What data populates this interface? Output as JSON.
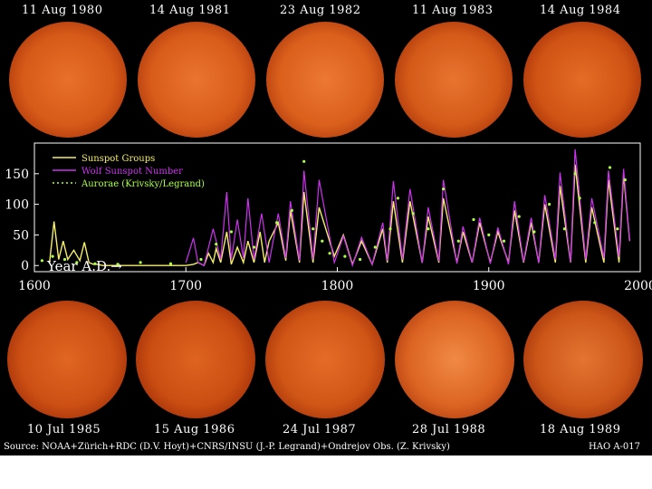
{
  "colors": {
    "background": "#000000",
    "sunspot_groups": "#f5ee6a",
    "wolf_number": "#cc33ee",
    "aurorae": "#aaff44",
    "sun_center": "#e0661c",
    "sun_edge": "#7a1d02"
  },
  "top_dates": [
    "11 Aug 1980",
    "14 Aug 1981",
    "23 Aug 1982",
    "11 Aug 1983",
    "14 Aug 1984"
  ],
  "bottom_dates": [
    "10 Jul 1985",
    "15 Aug 1986",
    "24 Jul 1987",
    "28 Jul 1988",
    "18 Aug 1989"
  ],
  "footer": {
    "source": "Source: NOAA+Zürich+RDC (D.V. Hoyt)+CNRS/INSU (J.-P. Legrand)+Ondrejov Obs. (Z. Krivsky)",
    "code": "HAO A-017"
  },
  "chart_data": {
    "type": "line",
    "xlabel": "Year A.D.→",
    "xlim": [
      1600,
      2000
    ],
    "ylim": [
      -10,
      200
    ],
    "x_ticks": [
      "1600",
      "1700",
      "1800",
      "1900",
      "2000"
    ],
    "y_ticks": [
      "0",
      "50",
      "100",
      "150"
    ],
    "grid": false,
    "legend_position": "top-left",
    "series": [
      {
        "name": "Sunspot Groups",
        "x": [
          1610,
          1613,
          1616,
          1619,
          1622,
          1626,
          1630,
          1633,
          1636,
          1639,
          1642,
          1645,
          1700,
          1705,
          1708,
          1712,
          1715,
          1718,
          1720,
          1723,
          1727,
          1730,
          1734,
          1738,
          1741,
          1745,
          1749,
          1752,
          1755,
          1761,
          1766,
          1769,
          1775,
          1778,
          1784,
          1788,
          1798,
          1804,
          1810,
          1816,
          1823,
          1830,
          1833,
          1837,
          1843,
          1848,
          1856,
          1860,
          1867,
          1870,
          1879,
          1883,
          1889,
          1894,
          1901,
          1906,
          1913,
          1917,
          1923,
          1928,
          1933,
          1937,
          1944,
          1947,
          1954,
          1957,
          1964,
          1968,
          1976,
          1979,
          1986,
          1989,
          1993
        ],
        "y": [
          5,
          72,
          10,
          40,
          10,
          25,
          8,
          38,
          5,
          2,
          2,
          0,
          0,
          2,
          5,
          0,
          20,
          5,
          28,
          5,
          55,
          2,
          30,
          5,
          40,
          5,
          55,
          5,
          40,
          70,
          8,
          90,
          5,
          120,
          5,
          95,
          15,
          50,
          2,
          40,
          2,
          60,
          5,
          105,
          5,
          105,
          5,
          80,
          5,
          110,
          5,
          55,
          5,
          70,
          5,
          55,
          5,
          90,
          5,
          70,
          5,
          100,
          5,
          130,
          5,
          165,
          5,
          95,
          5,
          140,
          5,
          150,
          40
        ]
      },
      {
        "name": "Wolf Sunspot Number",
        "x": [
          1700,
          1705,
          1708,
          1712,
          1718,
          1723,
          1727,
          1730,
          1734,
          1738,
          1741,
          1745,
          1750,
          1755,
          1761,
          1766,
          1769,
          1775,
          1778,
          1784,
          1788,
          1798,
          1804,
          1810,
          1816,
          1823,
          1830,
          1833,
          1837,
          1843,
          1848,
          1856,
          1860,
          1867,
          1870,
          1879,
          1883,
          1889,
          1894,
          1901,
          1906,
          1913,
          1917,
          1923,
          1928,
          1933,
          1937,
          1944,
          1947,
          1954,
          1957,
          1964,
          1968,
          1976,
          1979,
          1986,
          1989,
          1993
        ],
        "y": [
          5,
          45,
          5,
          0,
          60,
          10,
          120,
          10,
          75,
          12,
          110,
          10,
          85,
          5,
          85,
          12,
          105,
          8,
          155,
          10,
          140,
          5,
          48,
          0,
          46,
          2,
          70,
          8,
          138,
          10,
          125,
          4,
          95,
          7,
          140,
          3,
          64,
          5,
          78,
          3,
          62,
          2,
          105,
          6,
          78,
          4,
          115,
          10,
          152,
          5,
          190,
          10,
          110,
          12,
          155,
          14,
          158,
          40
        ]
      },
      {
        "name": "Aurorae (Krivsky/Legrand)",
        "x": [
          1605,
          1612,
          1620,
          1628,
          1640,
          1655,
          1670,
          1690,
          1710,
          1720,
          1730,
          1745,
          1760,
          1770,
          1778,
          1784,
          1790,
          1795,
          1805,
          1815,
          1825,
          1835,
          1840,
          1850,
          1860,
          1870,
          1880,
          1890,
          1900,
          1910,
          1920,
          1930,
          1940,
          1950,
          1957,
          1960,
          1970,
          1980,
          1985,
          1990
        ],
        "y": [
          8,
          15,
          10,
          5,
          3,
          2,
          5,
          3,
          10,
          35,
          55,
          30,
          70,
          90,
          170,
          60,
          40,
          20,
          15,
          10,
          30,
          60,
          110,
          85,
          60,
          125,
          40,
          75,
          50,
          40,
          80,
          55,
          100,
          60,
          150,
          110,
          70,
          160,
          60,
          140
        ]
      }
    ]
  }
}
